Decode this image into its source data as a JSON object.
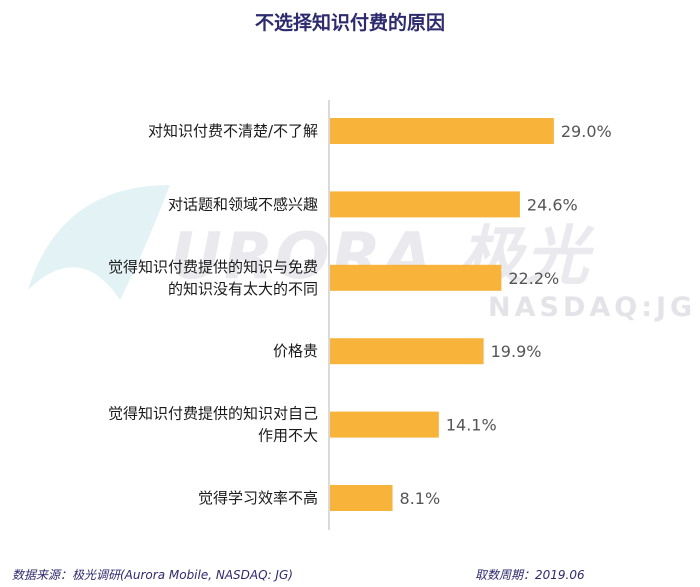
{
  "watermark": {
    "text": "URORA 极光",
    "sub": "NASDAQ:JG"
  },
  "footer": {
    "source": "数据来源：极光调研(Aurora Mobile, NASDAQ: JG)",
    "date": "取数周期：2019.06"
  },
  "colors": {
    "bar": "#f8b33a",
    "title": "#2e2a6e",
    "label": "#1a1a1a",
    "value": "#555555",
    "axis": "#b5b5b5"
  },
  "chart_data": {
    "type": "bar",
    "orientation": "horizontal",
    "title": "不选择知识付费的原因",
    "xlim": [
      0,
      30
    ],
    "grid": false,
    "categories": [
      [
        "对知识付费不清楚/不了解"
      ],
      [
        "对话题和领域不感兴趣"
      ],
      [
        "觉得知识付费提供的知识与免费",
        "的知识没有太大的不同"
      ],
      [
        "价格贵"
      ],
      [
        "觉得知识付费提供的知识对自己",
        "作用不大"
      ],
      [
        "觉得学习效率不高"
      ]
    ],
    "values": [
      29.0,
      24.6,
      22.2,
      19.9,
      14.1,
      8.1
    ],
    "value_labels": [
      "29.0%",
      "24.6%",
      "22.2%",
      "19.9%",
      "14.1%",
      "8.1%"
    ]
  }
}
